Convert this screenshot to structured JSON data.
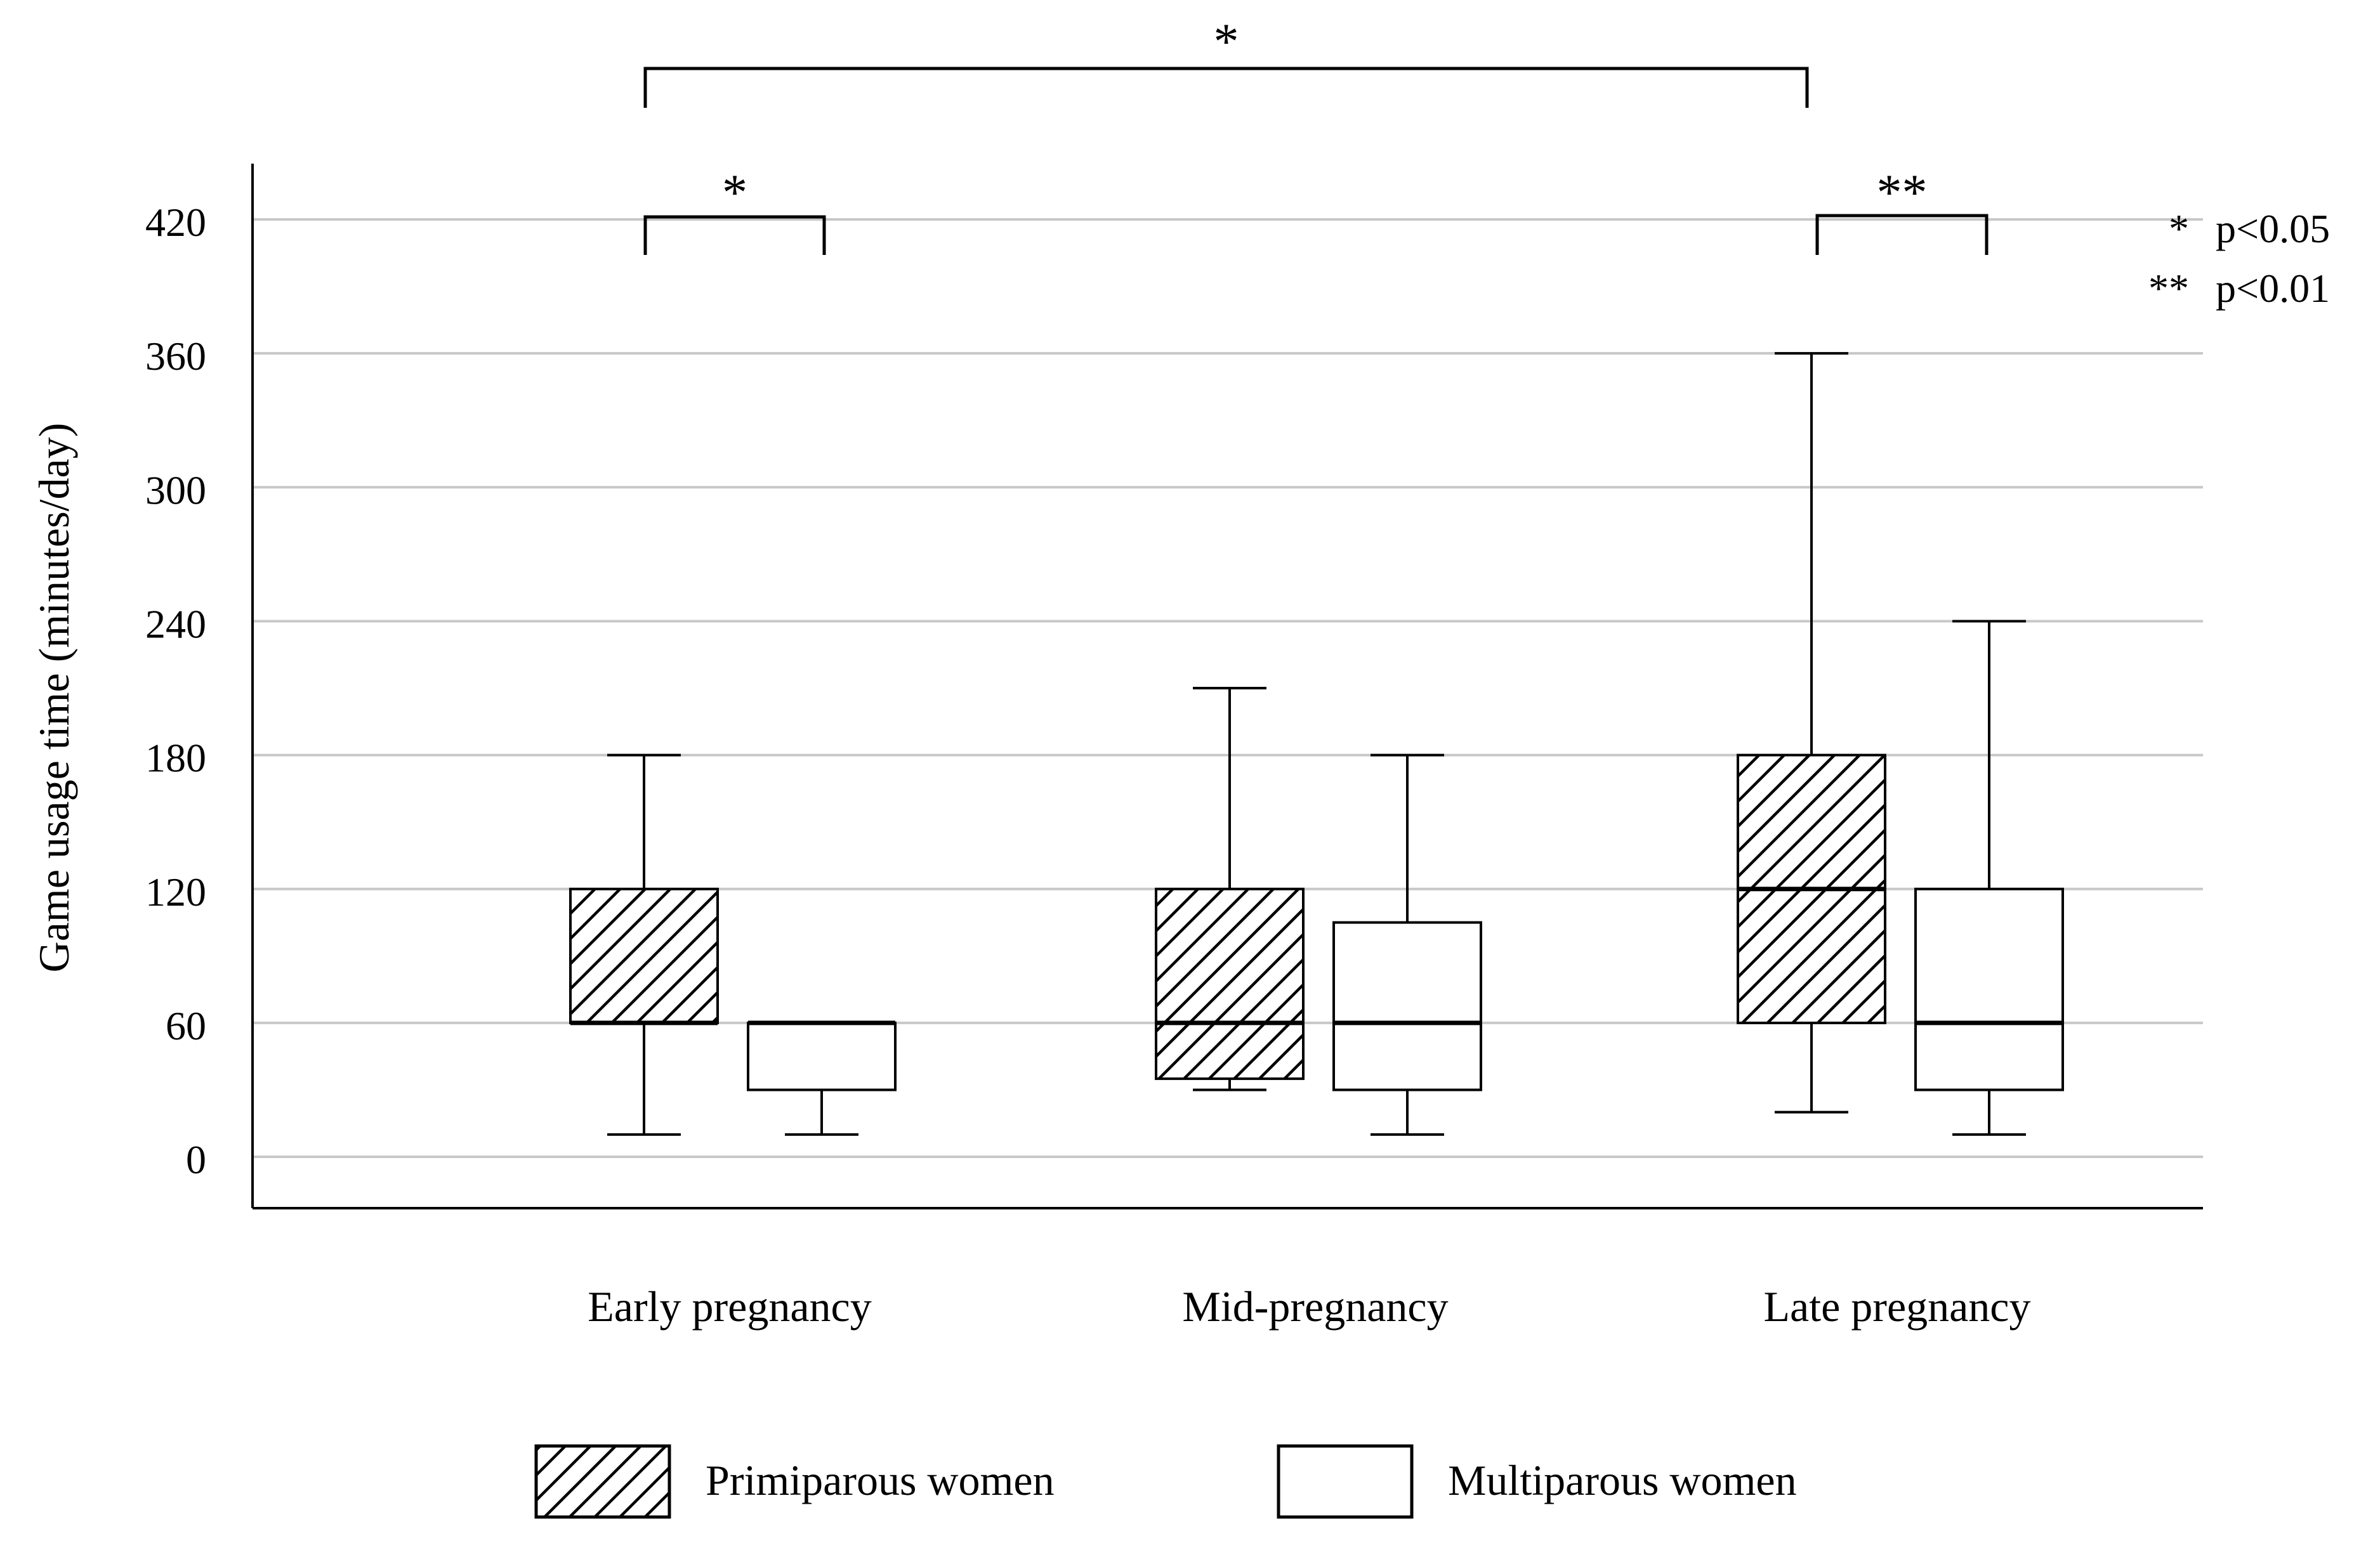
{
  "chart_data": {
    "type": "boxplot",
    "title": "",
    "ylabel": "Game usage time (minutes/day)",
    "xlabel": "",
    "ylim": [
      -23,
      445
    ],
    "yticks": [
      0,
      60,
      120,
      180,
      240,
      300,
      360,
      420
    ],
    "grid": true,
    "categories": [
      "Early pregnancy",
      "Mid-pregnancy",
      "Late pregnancy"
    ],
    "series": [
      {
        "name": "Primiparous women",
        "pattern": "hatched",
        "boxes": [
          {
            "min": 10,
            "q1": 60,
            "median": 60,
            "q3": 120,
            "max": 180
          },
          {
            "min": 30,
            "q1": 35,
            "median": 60,
            "q3": 120,
            "max": 210
          },
          {
            "min": 20,
            "q1": 60,
            "median": 120,
            "q3": 180,
            "max": 360
          }
        ]
      },
      {
        "name": "Multiparous women",
        "pattern": "plain",
        "boxes": [
          {
            "min": 10,
            "q1": 30,
            "median": 60,
            "q3": 60,
            "max": 60
          },
          {
            "min": 10,
            "q1": 30,
            "median": 60,
            "q3": 105,
            "max": 180
          },
          {
            "min": 10,
            "q1": 30,
            "median": 60,
            "q3": 120,
            "max": 240
          }
        ]
      }
    ],
    "significance": [
      {
        "from": "Early pregnancy / Primiparous women",
        "to": "Late pregnancy / Primiparous women",
        "label": "*"
      },
      {
        "from": "Early pregnancy / Primiparous women",
        "to": "Early pregnancy / Multiparous women",
        "label": "*"
      },
      {
        "from": "Late pregnancy / Primiparous women",
        "to": "Late pregnancy / Multiparous women",
        "label": "**"
      }
    ],
    "p_value_notes": [
      {
        "symbol": "*",
        "text": "p<0.05"
      },
      {
        "symbol": "**",
        "text": "p<0.01"
      }
    ],
    "legend": [
      {
        "label": "Primiparous women",
        "pattern": "hatched"
      },
      {
        "label": "Multiparous women",
        "pattern": "plain"
      }
    ],
    "legend_placement": "bottom-center"
  }
}
